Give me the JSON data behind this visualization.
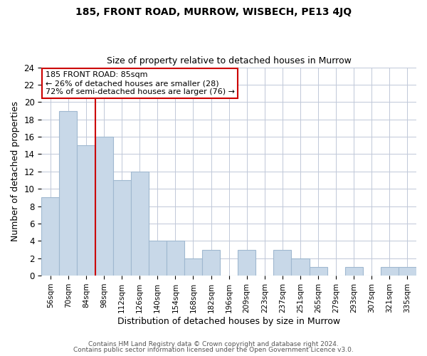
{
  "title": "185, FRONT ROAD, MURROW, WISBECH, PE13 4JQ",
  "subtitle": "Size of property relative to detached houses in Murrow",
  "xlabel": "Distribution of detached houses by size in Murrow",
  "ylabel": "Number of detached properties",
  "footer_lines": [
    "Contains HM Land Registry data © Crown copyright and database right 2024.",
    "Contains public sector information licensed under the Open Government Licence v3.0."
  ],
  "bin_labels": [
    "56sqm",
    "70sqm",
    "84sqm",
    "98sqm",
    "112sqm",
    "126sqm",
    "140sqm",
    "154sqm",
    "168sqm",
    "182sqm",
    "196sqm",
    "209sqm",
    "223sqm",
    "237sqm",
    "251sqm",
    "265sqm",
    "279sqm",
    "293sqm",
    "307sqm",
    "321sqm",
    "335sqm"
  ],
  "bar_heights": [
    9,
    19,
    15,
    16,
    11,
    12,
    4,
    4,
    2,
    3,
    0,
    3,
    0,
    3,
    2,
    1,
    0,
    1,
    0,
    1,
    1
  ],
  "bar_color": "#c8d8e8",
  "bar_edge_color": "#a0b8d0",
  "subject_line_color": "#cc0000",
  "ylim": [
    0,
    24
  ],
  "yticks": [
    0,
    2,
    4,
    6,
    8,
    10,
    12,
    14,
    16,
    18,
    20,
    22,
    24
  ],
  "annotation_line1": "185 FRONT ROAD: 85sqm",
  "annotation_line2": "← 26% of detached houses are smaller (28)",
  "annotation_line3": "72% of semi-detached houses are larger (76) →",
  "background_color": "#ffffff",
  "grid_color": "#c0c8d8"
}
